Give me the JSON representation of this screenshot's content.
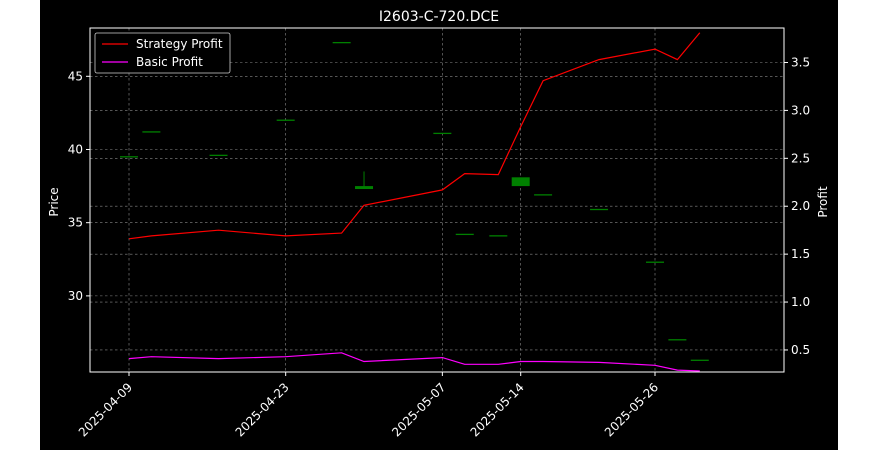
{
  "chart_data": {
    "type": "candlestick+line",
    "title": "I2603-C-720.DCE",
    "xlabel": "",
    "ylabel_left": "Price",
    "ylabel_right": "Profit",
    "x_tick_labels": [
      "2025-04-09",
      "2025-04-23",
      "2025-05-07",
      "2025-05-14",
      "2025-05-26"
    ],
    "x_tick_dates": [
      "2025-04-09",
      "2025-04-23",
      "2025-05-07",
      "2025-05-14",
      "2025-05-26"
    ],
    "y_left_ticks": [
      30,
      35,
      40,
      45
    ],
    "y_left_lim": [
      24.8,
      48.3
    ],
    "y_right_ticks": [
      0.5,
      1.0,
      1.5,
      2.0,
      2.5,
      3.0,
      3.5
    ],
    "y_right_lim": [
      0.27,
      3.86
    ],
    "grid": true,
    "legend_position": "top-left",
    "colors": {
      "background": "#000000",
      "axes": "#ffffff",
      "grid": "#8a8a8a",
      "up_candle": "#008000",
      "down_candle": "#ff0000",
      "strategy_profit": "#ff0000",
      "basic_profit": "#ff00ff"
    },
    "candles": [
      {
        "date": "2025-04-09",
        "open": 39.5,
        "high": 39.5,
        "low": 39.5,
        "close": 39.5
      },
      {
        "date": "2025-04-11",
        "open": 41.2,
        "high": 41.2,
        "low": 41.2,
        "close": 41.2
      },
      {
        "date": "2025-04-17",
        "open": 39.6,
        "high": 39.6,
        "low": 39.6,
        "close": 39.6
      },
      {
        "date": "2025-04-23",
        "open": 42.0,
        "high": 42.0,
        "low": 42.0,
        "close": 42.0
      },
      {
        "date": "2025-04-28",
        "open": 47.3,
        "high": 47.3,
        "low": 47.3,
        "close": 47.3
      },
      {
        "date": "2025-04-30",
        "open": 37.3,
        "high": 38.5,
        "low": 37.3,
        "close": 37.5
      },
      {
        "date": "2025-05-07",
        "open": 41.1,
        "high": 41.1,
        "low": 41.1,
        "close": 41.1
      },
      {
        "date": "2025-05-09",
        "open": 34.2,
        "high": 34.2,
        "low": 34.2,
        "close": 34.2
      },
      {
        "date": "2025-05-12",
        "open": 34.1,
        "high": 34.1,
        "low": 34.1,
        "close": 34.1
      },
      {
        "date": "2025-05-14",
        "open": 37.5,
        "high": 38.1,
        "low": 37.5,
        "close": 38.1
      },
      {
        "date": "2025-05-16",
        "open": 36.9,
        "high": 36.9,
        "low": 36.9,
        "close": 36.9
      },
      {
        "date": "2025-05-21",
        "open": 35.9,
        "high": 35.9,
        "low": 35.9,
        "close": 35.9
      },
      {
        "date": "2025-05-26",
        "open": 32.3,
        "high": 32.3,
        "low": 32.3,
        "close": 32.3
      },
      {
        "date": "2025-05-28",
        "open": 27.0,
        "high": 27.0,
        "low": 27.0,
        "close": 27.0
      },
      {
        "date": "2025-05-30",
        "open": 25.6,
        "high": 25.6,
        "low": 25.6,
        "close": 25.6
      }
    ],
    "series": [
      {
        "name": "Strategy Profit",
        "axis": "right",
        "values": [
          1.66,
          1.69,
          1.75,
          1.69,
          1.72,
          2.01,
          2.17,
          2.34,
          2.33,
          2.83,
          3.31,
          3.53,
          3.64,
          3.53,
          3.81
        ]
      },
      {
        "name": "Basic Profit",
        "axis": "right",
        "values": [
          0.41,
          0.43,
          0.41,
          0.43,
          0.47,
          0.38,
          0.42,
          0.35,
          0.35,
          0.38,
          0.38,
          0.37,
          0.34,
          0.29,
          0.28
        ]
      }
    ]
  }
}
